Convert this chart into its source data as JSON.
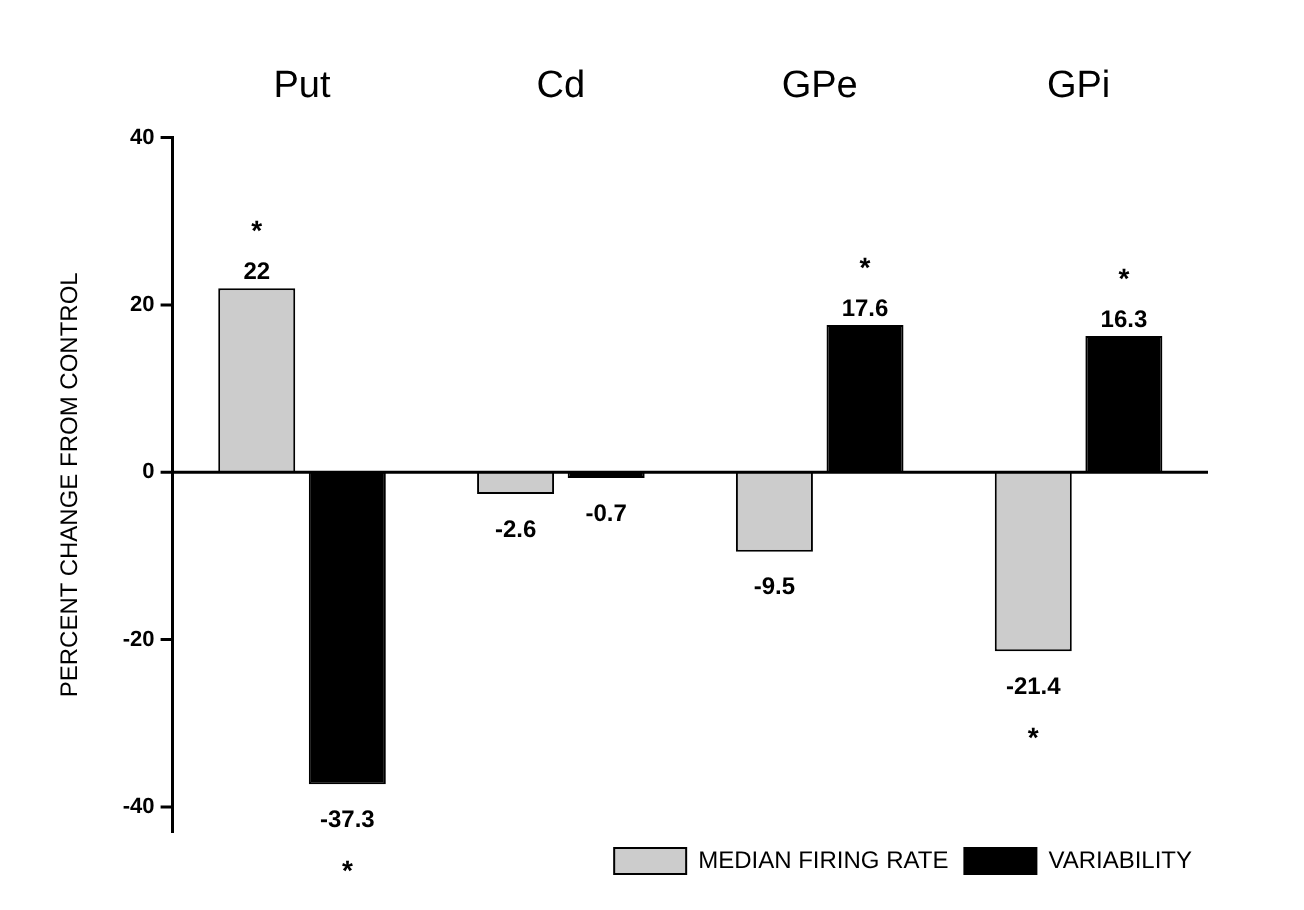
{
  "chart_data": {
    "type": "bar",
    "ylabel": "PERCENT CHANGE FROM CONTROL",
    "categories": [
      "Put",
      "Cd",
      "GPe",
      "GPi"
    ],
    "series": [
      {
        "name": "MEDIAN FIRING RATE",
        "color": "#cccccc",
        "values": [
          22,
          -2.6,
          -9.5,
          -21.4
        ]
      },
      {
        "name": "VARIABILITY",
        "color": "#000000",
        "values": [
          -37.3,
          -0.7,
          17.6,
          16.3
        ]
      }
    ],
    "ref_lines": [
      {
        "axis": "y",
        "value": 0,
        "color": "#000000"
      }
    ],
    "ylim": [
      -43,
      40
    ],
    "yticks": [
      -40,
      -20,
      0,
      20,
      40
    ],
    "grid": false,
    "legend": "bottom right",
    "data_labels": true,
    "annotations": [
      {
        "text": "*",
        "x": "Put",
        "y": 22
      },
      {
        "text": "*",
        "x": "Put",
        "y": -37.3
      },
      {
        "text": "*",
        "x": "GPe",
        "y": 17.6
      },
      {
        "text": "*",
        "x": "GPi",
        "y": 16.3
      },
      {
        "text": "*",
        "x": "GPi",
        "y": -21.4
      }
    ]
  }
}
